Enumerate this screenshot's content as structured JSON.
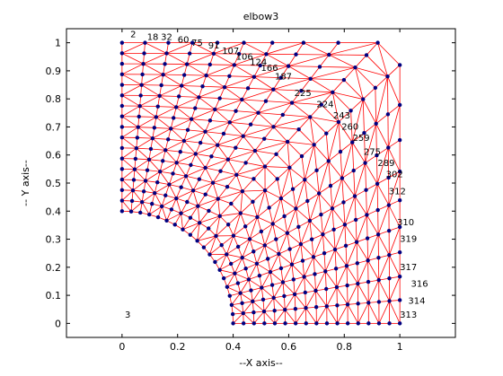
{
  "chart_data": {
    "type": "scatter",
    "title": "elbow3",
    "xlabel": "--X axis--",
    "ylabel": "-- Y axis--",
    "xlim": [
      -0.2,
      1.2
    ],
    "ylim": [
      -0.05,
      1.05
    ],
    "xticks": [
      "0",
      "0.2",
      "0.4",
      "0.6",
      "0.8",
      "1"
    ],
    "xtick_values": [
      0,
      0.2,
      0.4,
      0.6,
      0.8,
      1
    ],
    "yticks": [
      "0",
      "0.1",
      "0.2",
      "0.3",
      "0.4",
      "0.5",
      "0.6",
      "0.7",
      "0.8",
      "0.9",
      "1"
    ],
    "ytick_values": [
      0,
      0.1,
      0.2,
      0.3,
      0.4,
      0.5,
      0.6,
      0.7,
      0.8,
      0.9,
      1
    ],
    "grid": false,
    "colors": {
      "edges": "#ff0000",
      "nodes": "#000080",
      "labels": "#000000",
      "frame": "#000000"
    },
    "node_labels": [
      {
        "text": "2",
        "x": 0.03,
        "y": 1.02
      },
      {
        "text": "18",
        "x": 0.09,
        "y": 1.01
      },
      {
        "text": "32",
        "x": 0.14,
        "y": 1.01
      },
      {
        "text": "60",
        "x": 0.2,
        "y": 1.0
      },
      {
        "text": "75",
        "x": 0.25,
        "y": 0.99
      },
      {
        "text": "91",
        "x": 0.31,
        "y": 0.98
      },
      {
        "text": "107",
        "x": 0.36,
        "y": 0.96
      },
      {
        "text": "106",
        "x": 0.41,
        "y": 0.94
      },
      {
        "text": "124",
        "x": 0.46,
        "y": 0.92
      },
      {
        "text": "166",
        "x": 0.5,
        "y": 0.9
      },
      {
        "text": "187",
        "x": 0.55,
        "y": 0.87
      },
      {
        "text": "225",
        "x": 0.62,
        "y": 0.81
      },
      {
        "text": "224",
        "x": 0.7,
        "y": 0.77
      },
      {
        "text": "243",
        "x": 0.76,
        "y": 0.73
      },
      {
        "text": "260",
        "x": 0.79,
        "y": 0.69
      },
      {
        "text": "259",
        "x": 0.83,
        "y": 0.65
      },
      {
        "text": "275",
        "x": 0.87,
        "y": 0.6
      },
      {
        "text": "289",
        "x": 0.92,
        "y": 0.56
      },
      {
        "text": "302",
        "x": 0.95,
        "y": 0.52
      },
      {
        "text": "312",
        "x": 0.96,
        "y": 0.46
      },
      {
        "text": "310",
        "x": 0.99,
        "y": 0.35
      },
      {
        "text": "319",
        "x": 1.0,
        "y": 0.29
      },
      {
        "text": "317",
        "x": 1.0,
        "y": 0.19
      },
      {
        "text": "316",
        "x": 1.04,
        "y": 0.13
      },
      {
        "text": "314",
        "x": 1.03,
        "y": 0.07
      },
      {
        "text": "313",
        "x": 1.0,
        "y": 0.02
      },
      {
        "text": "3",
        "x": 0.01,
        "y": 0.02
      }
    ]
  }
}
